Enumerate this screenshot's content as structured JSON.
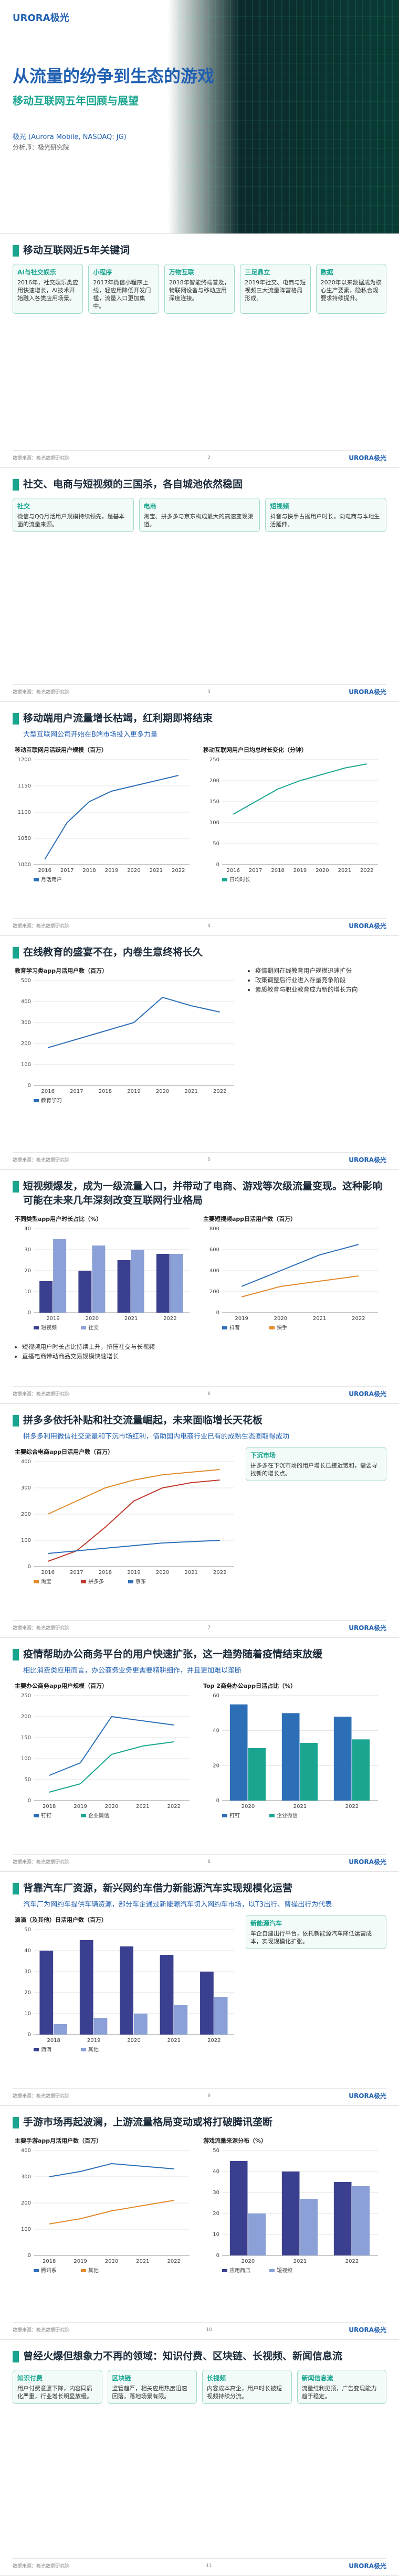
{
  "brand": "URORA极光",
  "cover": {
    "title": "从流量的纷争到生态的游戏",
    "subtitle": "移动互联网五年回顾与展望",
    "company": "极光 (Aurora Mobile, NASDAQ: JG)",
    "analyst": "分析师：极光研究院"
  },
  "slides": [
    {
      "title": "移动互联网近5年关键词",
      "boxes": [
        {
          "label": "AI与社交娱乐",
          "text": "2016年，社交娱乐类应用快速增长，AI技术开始融入各类应用场景。"
        },
        {
          "label": "小程序",
          "text": "2017年微信小程序上线，轻应用降低开发门槛，流量入口更加集中。"
        },
        {
          "label": "万物互联",
          "text": "2018年智能终端普及，物联网设备与移动应用深度连接。"
        },
        {
          "label": "三足鼎立",
          "text": "2019年社交、电商与短视频三大流量阵营格局形成。"
        },
        {
          "label": "数据",
          "text": "2020年以来数据成为核心生产要素，隐私合规要求持续提升。"
        }
      ],
      "source": "数据来源：极光数据研究院",
      "page": "2"
    },
    {
      "title": "社交、电商与短视频的三国杀，各自城池依然稳固",
      "boxes": [
        {
          "label": "社交",
          "text": "微信与QQ月活用户规模持续领先，是基本面的流量来源。"
        },
        {
          "label": "电商",
          "text": "淘宝、拼多多与京东构成最大的高速变现渠道。"
        },
        {
          "label": "短视频",
          "text": "抖音与快手占据用户时长，向电商与本地生活延伸。"
        }
      ],
      "source": "数据来源：极光数据研究院",
      "page": "3"
    },
    {
      "title": "移动端用户流量增长枯竭，红利期即将结束",
      "subtitle": "大型互联网公司开始在B端市场投入更多力量",
      "charts": [
        {
          "type": "line",
          "title": "移动互联网月活跃用户规模（百万）",
          "categories": [
            "2016",
            "2017",
            "2018",
            "2019",
            "2020",
            "2021",
            "2022"
          ],
          "series": [
            {
              "name": "月活用户",
              "color": "#2c6fb7",
              "values": [
                1010,
                1080,
                1120,
                1140,
                1150,
                1160,
                1170
              ]
            }
          ],
          "ylim": [
            1000,
            1200
          ],
          "yticks": [
            1000,
            1050,
            1100,
            1150,
            1200
          ]
        },
        {
          "type": "line",
          "title": "移动互联网用户日均总时长变化（分钟）",
          "categories": [
            "2016",
            "2017",
            "2018",
            "2019",
            "2020",
            "2021",
            "2022"
          ],
          "series": [
            {
              "name": "日均时长",
              "color": "#19a58f",
              "values": [
                120,
                150,
                180,
                200,
                215,
                230,
                240
              ]
            }
          ],
          "ylim": [
            0,
            250
          ],
          "yticks": [
            0,
            50,
            100,
            150,
            200,
            250
          ]
        }
      ],
      "source": "数据来源：极光数据研究院",
      "page": "4"
    },
    {
      "title": "在线教育的盛宴不在，内卷生意终将长久",
      "charts": [
        {
          "type": "line",
          "title": "教育学习类app月活用户数（百万）",
          "categories": [
            "2016",
            "2017",
            "2018",
            "2019",
            "2020",
            "2021",
            "2022"
          ],
          "series": [
            {
              "name": "教育学习",
              "color": "#2c6fb7",
              "values": [
                180,
                220,
                260,
                300,
                420,
                380,
                350
              ]
            }
          ],
          "ylim": [
            0,
            500
          ],
          "yticks": [
            0,
            100,
            200,
            300,
            400,
            500
          ]
        }
      ],
      "bullets": [
        "疫情期间在线教育用户规模迅速扩张",
        "政策调整后行业进入存量竞争阶段",
        "素质教育与职业教育成为新的增长方向"
      ],
      "source": "数据来源：极光数据研究院",
      "page": "5"
    },
    {
      "title": "短视频爆发，成为一级流量入口，并带动了电商、游戏等次级流量变现。这种影响可能在未来几年深刻改变互联网行业格局",
      "bullets": [
        "短视频用户时长占比持续上升，挤压社交与长视频",
        "直播电商带动商品交易规模快速增长"
      ],
      "charts": [
        {
          "type": "bar",
          "title": "不同类型app用户时长占比（%）",
          "categories": [
            "2019",
            "2020",
            "2021",
            "2022"
          ],
          "series": [
            {
              "name": "短视频",
              "color": "#3a3f8f",
              "values": [
                15,
                20,
                25,
                28
              ]
            },
            {
              "name": "社交",
              "color": "#8aa0d6",
              "values": [
                35,
                32,
                30,
                28
              ]
            }
          ],
          "ylim": [
            0,
            40
          ],
          "yticks": [
            0,
            10,
            20,
            30,
            40
          ]
        },
        {
          "type": "line",
          "title": "主要短视频app日活用户数（百万）",
          "categories": [
            "2019",
            "2020",
            "2021",
            "2022"
          ],
          "series": [
            {
              "name": "抖音",
              "color": "#2c6fb7",
              "values": [
                250,
                400,
                550,
                650
              ]
            },
            {
              "name": "快手",
              "color": "#e08a2c",
              "values": [
                150,
                250,
                300,
                350
              ]
            }
          ],
          "ylim": [
            0,
            800
          ],
          "yticks": [
            0,
            200,
            400,
            600,
            800
          ]
        }
      ],
      "source": "数据来源：极光数据研究院",
      "page": "6"
    },
    {
      "title": "拼多多依托补贴和社交流量崛起，未来面临增长天花板",
      "subtitle": "拼多多利用微信社交流量和下沉市场红利，借助国内电商行业已有的成熟生态圈取得成功",
      "charts": [
        {
          "type": "line",
          "title": "主要综合电商app日活用户数（百万）",
          "categories": [
            "2016",
            "2017",
            "2018",
            "2019",
            "2020",
            "2021",
            "2022"
          ],
          "series": [
            {
              "name": "淘宝",
              "color": "#e08a2c",
              "values": [
                200,
                250,
                300,
                330,
                350,
                360,
                370
              ]
            },
            {
              "name": "拼多多",
              "color": "#c0392b",
              "values": [
                20,
                60,
                150,
                250,
                300,
                320,
                330
              ]
            },
            {
              "name": "京东",
              "color": "#2c6fb7",
              "values": [
                50,
                60,
                70,
                80,
                90,
                95,
                100
              ]
            }
          ],
          "ylim": [
            0,
            400
          ],
          "yticks": [
            0,
            100,
            200,
            300,
            400
          ]
        }
      ],
      "boxes": [
        {
          "label": "下沉市场",
          "text": "拼多多在下沉市场的用户增长已接近饱和，需要寻找新的增长点。"
        }
      ],
      "source": "数据来源：极光数据研究院",
      "page": "7"
    },
    {
      "title": "疫情帮助办公商务平台的用户快速扩张，这一趋势随着疫情结束放缓",
      "subtitle": "相比消费类应用而言，办公商务业务更需要精耕细作，并且更加难以垄断",
      "charts": [
        {
          "type": "line",
          "title": "主要办公商务app用户规模（百万）",
          "categories": [
            "2018",
            "2019",
            "2020",
            "2021",
            "2022"
          ],
          "series": [
            {
              "name": "钉钉",
              "color": "#2c6fb7",
              "values": [
                60,
                90,
                200,
                190,
                180
              ]
            },
            {
              "name": "企业微信",
              "color": "#19a58f",
              "values": [
                20,
                40,
                110,
                130,
                140
              ]
            }
          ],
          "ylim": [
            0,
            250
          ],
          "yticks": [
            0,
            50,
            100,
            150,
            200,
            250
          ]
        },
        {
          "type": "bar",
          "title": "Top 2商务办公app日活占比（%）",
          "categories": [
            "2020",
            "2021",
            "2022"
          ],
          "series": [
            {
              "name": "钉钉",
              "color": "#2c6fb7",
              "values": [
                55,
                50,
                48
              ]
            },
            {
              "name": "企业微信",
              "color": "#19a58f",
              "values": [
                30,
                33,
                35
              ]
            }
          ],
          "ylim": [
            0,
            60
          ],
          "yticks": [
            0,
            20,
            40,
            60
          ]
        }
      ],
      "source": "数据来源：极光数据研究院",
      "page": "8"
    },
    {
      "title": "背靠汽车厂资源，新兴网约车借力新能源汽车实现规模化运营",
      "subtitle": "汽车厂为网约车提供车辆资源，部分车企通过新能源汽车切入网约车市场，以T3出行、曹操出行为代表",
      "charts": [
        {
          "type": "bar",
          "title": "滴滴（及其他）日活用户数（百万）",
          "categories": [
            "2018",
            "2019",
            "2020",
            "2021",
            "2022"
          ],
          "series": [
            {
              "name": "滴滴",
              "color": "#3a3f8f",
              "values": [
                40,
                45,
                42,
                38,
                30
              ]
            },
            {
              "name": "其他",
              "color": "#8aa0d6",
              "values": [
                5,
                8,
                10,
                14,
                18
              ]
            }
          ],
          "ylim": [
            0,
            50
          ],
          "yticks": [
            0,
            10,
            20,
            30,
            40,
            50
          ]
        }
      ],
      "boxes": [
        {
          "label": "新能源汽车",
          "text": "车企自建出行平台，依托新能源汽车降低运营成本，实现规模化扩张。"
        }
      ],
      "source": "数据来源：极光数据研究院",
      "page": "9"
    },
    {
      "title": "手游市场再起波澜，上游流量格局变动或将打破腾讯垄断",
      "charts": [
        {
          "type": "line",
          "title": "主要手游app月活用户数（百万）",
          "categories": [
            "2018",
            "2019",
            "2020",
            "2021",
            "2022"
          ],
          "series": [
            {
              "name": "腾讯系",
              "color": "#2c6fb7",
              "values": [
                300,
                320,
                350,
                340,
                330
              ]
            },
            {
              "name": "其他",
              "color": "#e08a2c",
              "values": [
                120,
                140,
                170,
                190,
                210
              ]
            }
          ],
          "ylim": [
            0,
            400
          ],
          "yticks": [
            0,
            100,
            200,
            300,
            400
          ]
        },
        {
          "type": "bar",
          "title": "游戏流量来源分布（%）",
          "categories": [
            "2020",
            "2021",
            "2022"
          ],
          "series": [
            {
              "name": "应用商店",
              "color": "#3a3f8f",
              "values": [
                45,
                40,
                35
              ]
            },
            {
              "name": "短视频",
              "color": "#8aa0d6",
              "values": [
                20,
                27,
                33
              ]
            }
          ],
          "ylim": [
            0,
            50
          ],
          "yticks": [
            0,
            10,
            20,
            30,
            40,
            50
          ]
        }
      ],
      "source": "数据来源：极光数据研究院",
      "page": "10"
    },
    {
      "title": "曾经火爆但想象力不再的领域：知识付费、区块链、长视频、新闻信息流",
      "boxes": [
        {
          "label": "知识付费",
          "text": "用户付费意愿下降，内容同质化严重，行业增长明显放缓。"
        },
        {
          "label": "区块链",
          "text": "监管趋严，相关应用热度迅速回落，落地场景有限。"
        },
        {
          "label": "长视频",
          "text": "内容成本高企，用户时长被短视频持续分流。"
        },
        {
          "label": "新闻信息流",
          "text": "流量红利见顶，广告变现能力趋于稳定。"
        }
      ],
      "source": "数据来源：极光数据研究院",
      "page": "11"
    }
  ]
}
